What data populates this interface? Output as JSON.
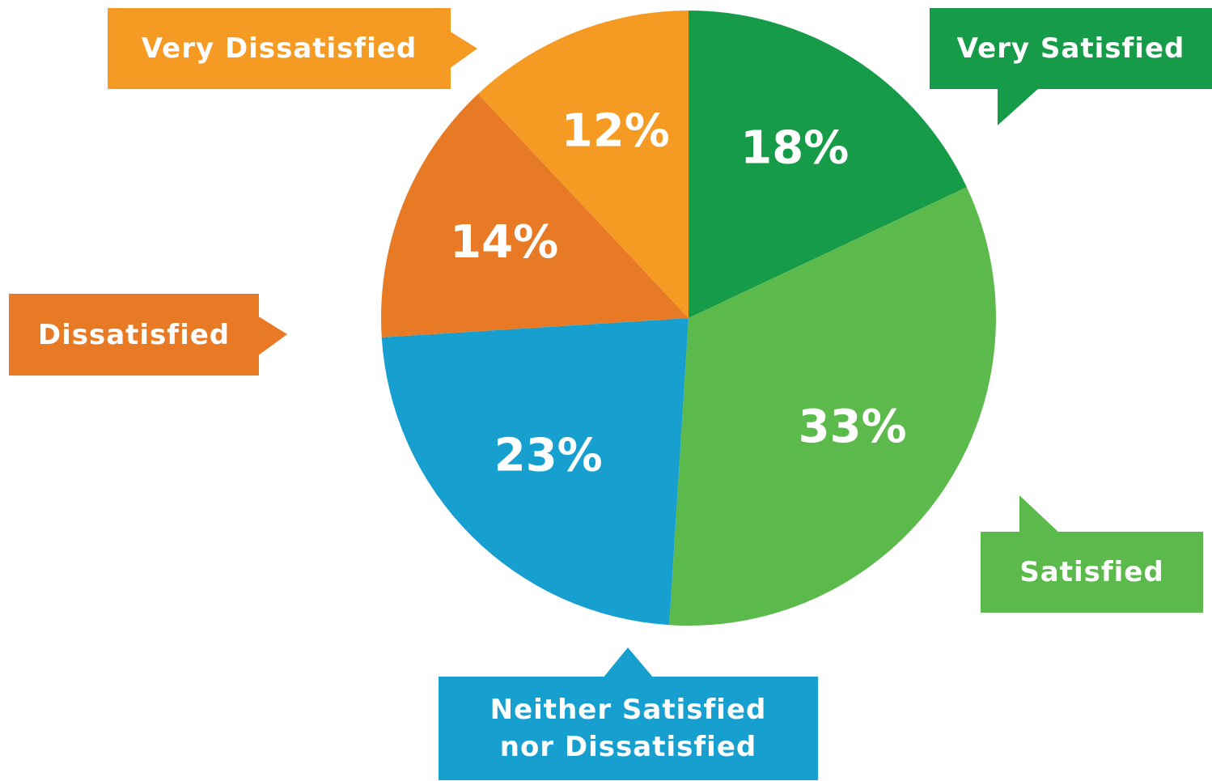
{
  "chart_data": {
    "type": "pie",
    "categories": [
      "Very Satisfied",
      "Satisfied",
      "Neither Satisfied nor Dissatisfied",
      "Dissatisfied",
      "Very Dissatisfied"
    ],
    "values": [
      18,
      33,
      23,
      14,
      12
    ],
    "value_labels": [
      "18%",
      "33%",
      "23%",
      "14%",
      "12%"
    ],
    "colors": [
      "#169c48",
      "#5cb94b",
      "#179fd0",
      "#e87a26",
      "#f59a23"
    ]
  }
}
